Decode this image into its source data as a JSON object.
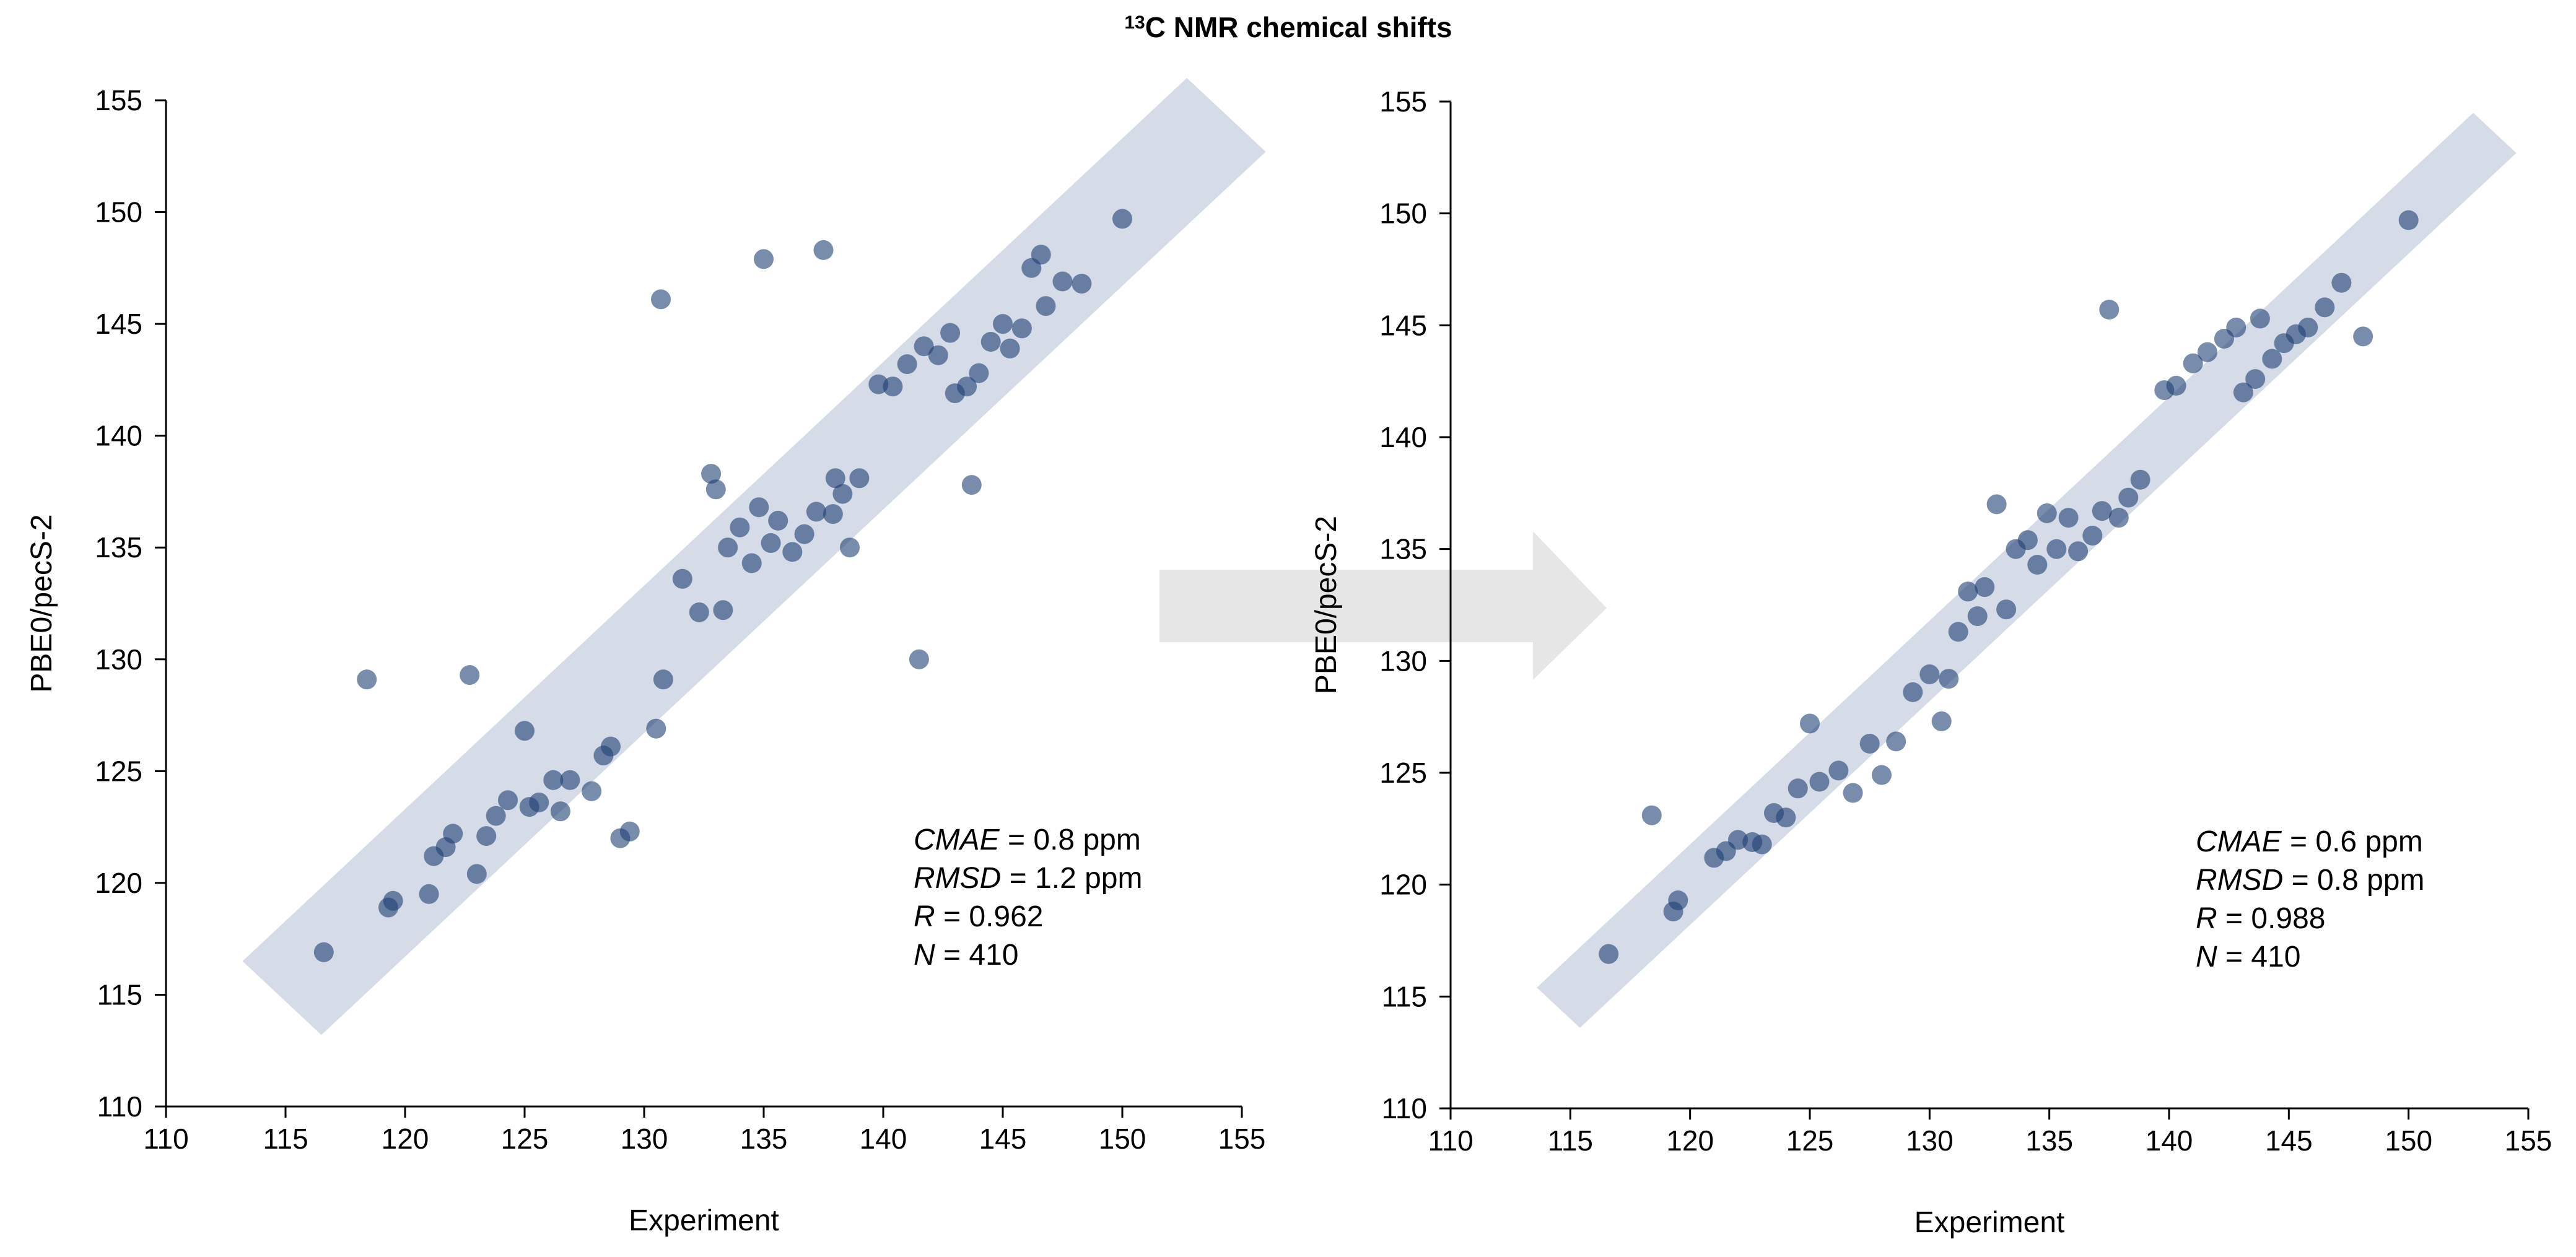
{
  "figure": {
    "title_sup": "13",
    "title_main": "C NMR  chemical shifts"
  },
  "colors": {
    "point": "#1e3f73",
    "band": "#d5dce8",
    "arrow": "#e6e6e6",
    "axis": "#000000"
  },
  "chart_data": [
    {
      "type": "scatter",
      "title": "",
      "xlabel": "Experiment",
      "ylabel": "PBE0/pecS-2",
      "xlim": [
        110,
        155
      ],
      "ylim": [
        110,
        155
      ],
      "xticks": [
        110,
        115,
        120,
        125,
        130,
        135,
        140,
        145,
        150,
        155
      ],
      "yticks": [
        110,
        115,
        120,
        125,
        130,
        135,
        140,
        145,
        150,
        155
      ],
      "band": {
        "description": "error band around y = x",
        "half_width": 3.3,
        "x_range": [
          113.2,
          152.7
        ]
      },
      "stats": [
        {
          "name": "CMAE",
          "rest": " = 0.8 ppm"
        },
        {
          "name": "RMSD",
          "rest": " = 1.2 ppm"
        },
        {
          "name": "R",
          "rest": " = 0.962"
        },
        {
          "name": "N",
          "rest": " = 410"
        }
      ],
      "series": [
        {
          "name": "data",
          "points": [
            [
              116.6,
              116.9
            ],
            [
              118.4,
              129.1
            ],
            [
              119.3,
              118.9
            ],
            [
              119.5,
              119.2
            ],
            [
              121.0,
              119.5
            ],
            [
              121.2,
              121.2
            ],
            [
              121.7,
              121.6
            ],
            [
              122.0,
              122.2
            ],
            [
              122.7,
              129.3
            ],
            [
              123.0,
              120.4
            ],
            [
              123.4,
              122.1
            ],
            [
              123.8,
              123.0
            ],
            [
              124.3,
              123.7
            ],
            [
              125.0,
              126.8
            ],
            [
              125.2,
              123.4
            ],
            [
              125.6,
              123.6
            ],
            [
              126.2,
              124.6
            ],
            [
              126.9,
              124.6
            ],
            [
              126.5,
              123.2
            ],
            [
              127.8,
              124.1
            ],
            [
              128.3,
              125.7
            ],
            [
              128.6,
              126.1
            ],
            [
              129.0,
              122.0
            ],
            [
              129.4,
              122.3
            ],
            [
              130.5,
              126.9
            ],
            [
              130.8,
              129.1
            ],
            [
              130.7,
              146.1
            ],
            [
              131.6,
              133.6
            ],
            [
              132.3,
              132.1
            ],
            [
              132.8,
              138.3
            ],
            [
              133.0,
              137.6
            ],
            [
              133.3,
              132.2
            ],
            [
              133.5,
              135.0
            ],
            [
              134.0,
              135.9
            ],
            [
              134.5,
              134.3
            ],
            [
              134.8,
              136.8
            ],
            [
              135.0,
              147.9
            ],
            [
              135.3,
              135.2
            ],
            [
              135.6,
              136.2
            ],
            [
              136.2,
              134.8
            ],
            [
              136.7,
              135.6
            ],
            [
              137.2,
              136.6
            ],
            [
              137.5,
              148.3
            ],
            [
              137.9,
              136.5
            ],
            [
              138.0,
              138.1
            ],
            [
              138.3,
              137.4
            ],
            [
              138.6,
              135.0
            ],
            [
              139.0,
              138.1
            ],
            [
              139.8,
              142.3
            ],
            [
              140.4,
              142.2
            ],
            [
              141.0,
              143.2
            ],
            [
              141.5,
              130.0
            ],
            [
              141.7,
              144.0
            ],
            [
              142.3,
              143.6
            ],
            [
              142.8,
              144.6
            ],
            [
              143.0,
              141.9
            ],
            [
              143.5,
              142.2
            ],
            [
              143.7,
              137.8
            ],
            [
              144.0,
              142.8
            ],
            [
              144.5,
              144.2
            ],
            [
              145.0,
              145.0
            ],
            [
              145.3,
              143.9
            ],
            [
              145.8,
              144.8
            ],
            [
              146.2,
              147.5
            ],
            [
              146.6,
              148.1
            ],
            [
              146.8,
              145.8
            ],
            [
              147.5,
              146.9
            ],
            [
              148.3,
              146.8
            ],
            [
              150.0,
              149.7
            ]
          ]
        }
      ]
    },
    {
      "type": "scatter",
      "title": "",
      "xlabel": "Experiment",
      "ylabel": "PBE0/pecS-2",
      "xlim": [
        110,
        155
      ],
      "ylim": [
        110,
        155
      ],
      "xticks": [
        110,
        115,
        120,
        125,
        130,
        135,
        140,
        145,
        150,
        155
      ],
      "yticks": [
        110,
        115,
        120,
        125,
        130,
        135,
        140,
        145,
        150,
        155
      ],
      "band": {
        "description": "error band around y = x",
        "half_width": 1.8,
        "x_range": [
          113.6,
          152.7
        ]
      },
      "stats": [
        {
          "name": "CMAE",
          "rest": " = 0.6 ppm"
        },
        {
          "name": "RMSD",
          "rest": " = 0.8 ppm"
        },
        {
          "name": "R",
          "rest": " = 0.988"
        },
        {
          "name": "N",
          "rest": " = 410"
        }
      ],
      "series": [
        {
          "name": "data",
          "points": [
            [
              116.6,
              116.9
            ],
            [
              118.4,
              123.1
            ],
            [
              119.3,
              118.8
            ],
            [
              119.5,
              119.3
            ],
            [
              121.0,
              121.2
            ],
            [
              121.5,
              121.5
            ],
            [
              122.0,
              122.0
            ],
            [
              122.6,
              121.9
            ],
            [
              123.0,
              121.8
            ],
            [
              123.5,
              123.2
            ],
            [
              124.0,
              123.0
            ],
            [
              124.5,
              124.3
            ],
            [
              125.0,
              127.2
            ],
            [
              125.4,
              124.6
            ],
            [
              126.2,
              125.1
            ],
            [
              126.8,
              124.1
            ],
            [
              127.5,
              126.3
            ],
            [
              128.0,
              124.9
            ],
            [
              128.6,
              126.4
            ],
            [
              129.3,
              128.6
            ],
            [
              130.0,
              129.4
            ],
            [
              130.5,
              127.3
            ],
            [
              130.8,
              129.2
            ],
            [
              131.2,
              131.3
            ],
            [
              131.6,
              133.1
            ],
            [
              132.0,
              132.0
            ],
            [
              132.3,
              133.3
            ],
            [
              132.8,
              137.0
            ],
            [
              133.2,
              132.3
            ],
            [
              133.6,
              135.0
            ],
            [
              134.1,
              135.4
            ],
            [
              134.5,
              134.3
            ],
            [
              134.9,
              136.6
            ],
            [
              135.3,
              135.0
            ],
            [
              135.8,
              136.4
            ],
            [
              136.2,
              134.9
            ],
            [
              136.8,
              135.6
            ],
            [
              137.2,
              136.7
            ],
            [
              137.5,
              145.7
            ],
            [
              137.9,
              136.4
            ],
            [
              138.3,
              137.3
            ],
            [
              138.8,
              138.1
            ],
            [
              139.8,
              142.1
            ],
            [
              140.3,
              142.3
            ],
            [
              141.0,
              143.3
            ],
            [
              141.6,
              143.8
            ],
            [
              142.3,
              144.4
            ],
            [
              142.8,
              144.9
            ],
            [
              143.1,
              142.0
            ],
            [
              143.6,
              142.6
            ],
            [
              143.8,
              145.3
            ],
            [
              144.3,
              143.5
            ],
            [
              144.8,
              144.2
            ],
            [
              145.3,
              144.6
            ],
            [
              145.8,
              144.9
            ],
            [
              146.5,
              145.8
            ],
            [
              147.2,
              146.9
            ],
            [
              148.1,
              144.5
            ],
            [
              150.0,
              149.7
            ]
          ]
        }
      ]
    }
  ]
}
